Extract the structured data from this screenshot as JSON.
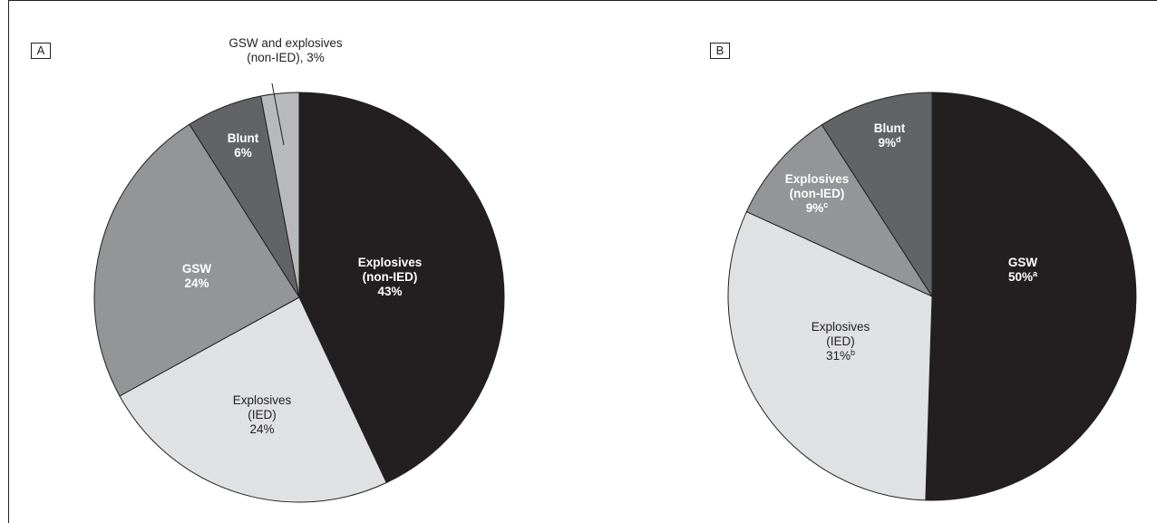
{
  "panels": [
    {
      "label": "A"
    },
    {
      "label": "B"
    }
  ],
  "chart_data": [
    {
      "type": "pie",
      "panel": "A",
      "slices": [
        {
          "name": "Explosives (non-IED)",
          "value": 43,
          "color": "#231f20",
          "label_lines": [
            "Explosives",
            "(non-IED)",
            "43%"
          ],
          "label_color": "#ffffff",
          "bold": true
        },
        {
          "name": "Explosives (IED)",
          "value": 24,
          "color": "#e0e1e2",
          "label_lines": [
            "Explosives",
            "(IED)",
            "24%"
          ],
          "label_color": "#231f20",
          "bold": false
        },
        {
          "name": "GSW",
          "value": 24,
          "color": "#939597",
          "label_lines": [
            "GSW",
            "24%"
          ],
          "label_color": "#ffffff",
          "bold": true
        },
        {
          "name": "Blunt",
          "value": 6,
          "color": "#626366",
          "label_lines": [
            "Blunt",
            "6%"
          ],
          "label_color": "#ffffff",
          "bold": true
        },
        {
          "name": "GSW and explosives (non-IED)",
          "value": 3,
          "color": "#b8b9bb",
          "label_lines": [
            "GSW and explosives",
            "(non-IED), 3%"
          ],
          "label_color": "#231f20",
          "bold": false,
          "callout": true
        }
      ]
    },
    {
      "type": "pie",
      "panel": "B",
      "slices": [
        {
          "name": "GSW",
          "value": 50,
          "color": "#231f20",
          "label_lines": [
            "GSW",
            "50%"
          ],
          "footnote": "a",
          "label_color": "#ffffff",
          "bold": true
        },
        {
          "name": "Explosives (IED)",
          "value": 31,
          "color": "#e0e1e2",
          "label_lines": [
            "Explosives",
            "(IED)",
            "31%"
          ],
          "footnote": "b",
          "label_color": "#231f20",
          "bold": false
        },
        {
          "name": "Explosives (non-IED)",
          "value": 9,
          "color": "#939597",
          "label_lines": [
            "Explosives",
            "(non-IED)",
            "9%"
          ],
          "footnote": "c",
          "label_color": "#ffffff",
          "bold": true
        },
        {
          "name": "Blunt",
          "value": 9,
          "color": "#626366",
          "label_lines": [
            "Blunt",
            "9%"
          ],
          "footnote": "d",
          "label_color": "#ffffff",
          "bold": true
        }
      ]
    }
  ]
}
